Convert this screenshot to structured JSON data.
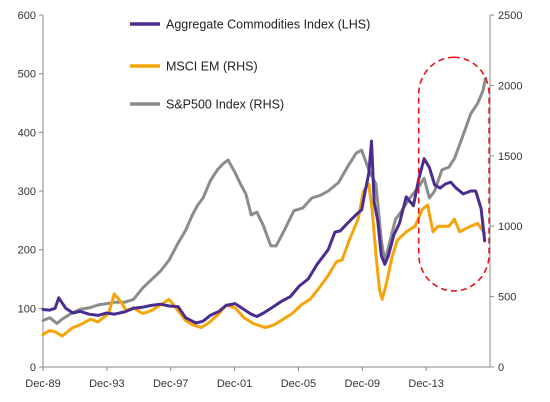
{
  "chart_data": {
    "type": "line",
    "title": "",
    "xlabel": "",
    "x_tick_labels": [
      "Dec-89",
      "Dec-93",
      "Dec-97",
      "Dec-01",
      "Dec-05",
      "Dec-09",
      "Dec-13"
    ],
    "x_range": [
      1989.92,
      2015.0
    ],
    "left_axis": {
      "ylim": [
        0,
        600
      ],
      "ticks": [
        0,
        100,
        200,
        300,
        400,
        500,
        600
      ]
    },
    "right_axis": {
      "ylim": [
        0,
        2500
      ],
      "ticks": [
        0,
        500,
        1000,
        1500,
        2000,
        2500
      ]
    },
    "grid": false,
    "legend_position": "top-center",
    "series": [
      {
        "name": "Aggregate Commodities Index (LHS)",
        "axis": "left",
        "color": "#4b2d8f",
        "x": [
          1989.92,
          1990.3,
          1990.6,
          1990.8,
          1991.2,
          1991.6,
          1992.0,
          1992.5,
          1993.0,
          1993.5,
          1993.92,
          1994.5,
          1995.0,
          1995.5,
          1996.0,
          1996.5,
          1997.0,
          1997.5,
          1997.92,
          1998.5,
          1998.9,
          1999.3,
          1999.8,
          2000.2,
          2000.7,
          2001.2,
          2001.6,
          2001.92,
          2002.3,
          2002.8,
          2003.3,
          2003.8,
          2004.3,
          2004.8,
          2005.3,
          2005.92,
          2006.3,
          2006.6,
          2007.0,
          2007.5,
          2007.8,
          2008.0,
          2008.2,
          2008.35,
          2008.5,
          2008.7,
          2008.9,
          2009.1,
          2009.3,
          2009.6,
          2009.92,
          2010.3,
          2010.7,
          2011.0,
          2011.3,
          2011.6,
          2011.9,
          2012.2,
          2012.5,
          2012.8,
          2013.1,
          2013.5,
          2013.92,
          2014.2,
          2014.5,
          2014.7
        ],
        "y": [
          98,
          97,
          100,
          118,
          100,
          92,
          95,
          90,
          88,
          92,
          90,
          94,
          100,
          102,
          105,
          107,
          104,
          103,
          84,
          75,
          78,
          88,
          95,
          105,
          108,
          98,
          90,
          86,
          92,
          102,
          112,
          120,
          138,
          150,
          175,
          200,
          230,
          232,
          245,
          260,
          268,
          300,
          330,
          385,
          280,
          250,
          190,
          175,
          190,
          225,
          245,
          290,
          275,
          320,
          355,
          340,
          310,
          305,
          312,
          315,
          305,
          295,
          300,
          300,
          270,
          215
        ]
      },
      {
        "name": "MSCI EM (RHS)",
        "axis": "right",
        "color": "#f5a50a",
        "x": [
          1989.92,
          1990.3,
          1990.6,
          1991.0,
          1991.6,
          1992.0,
          1992.6,
          1993.0,
          1993.6,
          1993.92,
          1994.3,
          1994.6,
          1995.0,
          1995.5,
          1996.0,
          1996.5,
          1997.0,
          1997.5,
          1997.92,
          1998.3,
          1998.8,
          1999.3,
          1999.8,
          2000.2,
          2000.7,
          2001.2,
          2001.7,
          2001.92,
          2002.4,
          2002.9,
          2003.4,
          2003.9,
          2004.4,
          2004.9,
          2005.4,
          2005.92,
          2006.4,
          2006.7,
          2007.1,
          2007.6,
          2007.9,
          2008.2,
          2008.4,
          2008.6,
          2008.8,
          2008.95,
          2009.2,
          2009.5,
          2009.8,
          2010.3,
          2010.8,
          2011.2,
          2011.5,
          2011.8,
          2012.1,
          2012.4,
          2012.7,
          2013.0,
          2013.3,
          2013.6,
          2013.92,
          2014.3,
          2014.7
        ],
        "y": [
          230,
          260,
          250,
          220,
          280,
          300,
          340,
          320,
          380,
          520,
          460,
          400,
          420,
          380,
          400,
          440,
          480,
          400,
          330,
          300,
          280,
          320,
          380,
          440,
          420,
          350,
          310,
          300,
          280,
          300,
          340,
          380,
          440,
          480,
          560,
          650,
          750,
          760,
          900,
          1050,
          1250,
          1300,
          1100,
          800,
          550,
          480,
          600,
          780,
          900,
          960,
          1000,
          1120,
          1150,
          960,
          1000,
          1000,
          1000,
          1050,
          960,
          980,
          1000,
          1020,
          950
        ]
      },
      {
        "name": "S&P500 Index (RHS)",
        "axis": "right",
        "color": "#8c8c8c",
        "x": [
          1989.92,
          1990.3,
          1990.7,
          1991.0,
          1991.5,
          1992.0,
          1992.5,
          1993.0,
          1993.5,
          1993.92,
          1994.5,
          1995.0,
          1995.5,
          1996.0,
          1996.5,
          1997.0,
          1997.5,
          1997.92,
          1998.3,
          1998.6,
          1998.9,
          1999.3,
          1999.7,
          2000.0,
          2000.3,
          2000.7,
          2001.0,
          2001.3,
          2001.6,
          2001.92,
          2002.3,
          2002.7,
          2003.0,
          2003.5,
          2004.0,
          2004.5,
          2005.0,
          2005.5,
          2005.92,
          2006.5,
          2007.0,
          2007.5,
          2007.8,
          2008.2,
          2008.6,
          2008.9,
          2009.1,
          2009.3,
          2009.7,
          2010.0,
          2010.5,
          2011.0,
          2011.3,
          2011.6,
          2011.9,
          2012.3,
          2012.7,
          2013.0,
          2013.5,
          2013.92,
          2014.3,
          2014.6,
          2014.75
        ],
        "y": [
          330,
          350,
          310,
          340,
          380,
          410,
          420,
          440,
          450,
          460,
          460,
          480,
          560,
          620,
          680,
          760,
          880,
          970,
          1080,
          1150,
          1200,
          1320,
          1400,
          1440,
          1470,
          1380,
          1300,
          1230,
          1080,
          1100,
          1000,
          860,
          860,
          980,
          1110,
          1130,
          1200,
          1220,
          1250,
          1310,
          1420,
          1520,
          1540,
          1400,
          1300,
          900,
          750,
          850,
          1050,
          1100,
          1200,
          1280,
          1340,
          1200,
          1250,
          1400,
          1420,
          1480,
          1650,
          1800,
          1870,
          1960,
          2050
        ]
      }
    ],
    "annotations": [
      {
        "type": "dashed-ellipse",
        "color": "#e8101a",
        "x_range": [
          2011.0,
          2014.95
        ],
        "right_axis_y_range": [
          540,
          2200
        ]
      }
    ]
  }
}
